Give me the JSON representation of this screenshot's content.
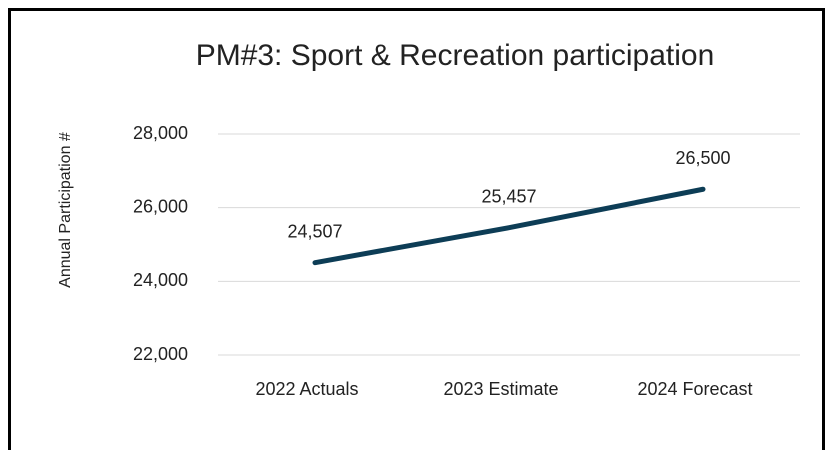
{
  "chart_data": {
    "type": "line",
    "title": "PM#3: Sport & Recreation participation",
    "y_label": "Annual Participation #",
    "categories": [
      "2022 Actuals",
      "2023 Estimate",
      "2024 Forecast"
    ],
    "series": [
      {
        "name": "Participation",
        "color": "#0d3d56",
        "values": [
          24507,
          25457,
          26500
        ],
        "value_labels": [
          "24,507",
          "25,457",
          "26,500"
        ]
      }
    ],
    "ylim": [
      22000,
      28000
    ],
    "yticks": [
      {
        "value": 22000,
        "label": "22,000"
      },
      {
        "value": 24000,
        "label": "24,000"
      },
      {
        "value": 26000,
        "label": "26,000"
      },
      {
        "value": 28000,
        "label": "28,000"
      }
    ],
    "grid": true
  }
}
